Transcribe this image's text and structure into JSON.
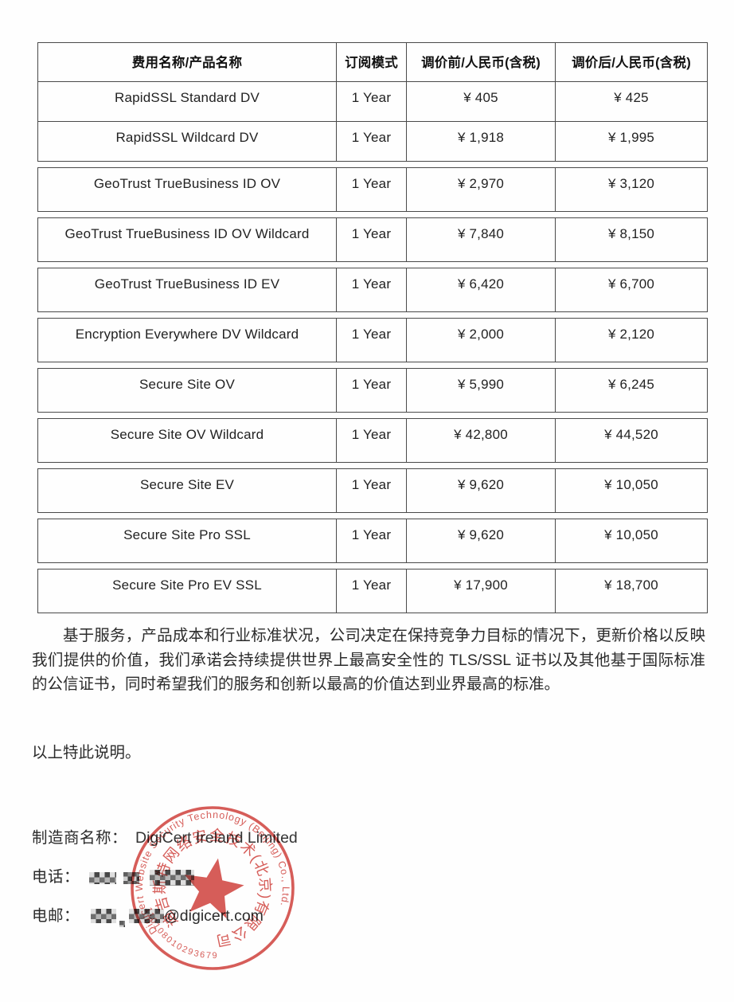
{
  "table": {
    "headers": [
      "费用名称/产品名称",
      "订阅模式",
      "调价前/人民币(含税)",
      "调价后/人民币(含税)"
    ],
    "rows": [
      {
        "product": "RapidSSL Standard DV",
        "term": "1 Year",
        "before": "¥ 405",
        "after": "¥ 425"
      },
      {
        "product": "RapidSSL Wildcard DV",
        "term": "1 Year",
        "before": "¥ 1,918",
        "after": "¥ 1,995"
      },
      {
        "product": "GeoTrust TrueBusiness ID OV",
        "term": "1 Year",
        "before": "¥ 2,970",
        "after": "¥ 3,120"
      },
      {
        "product": "GeoTrust TrueBusiness ID OV Wildcard",
        "term": "1 Year",
        "before": "¥ 7,840",
        "after": "¥ 8,150"
      },
      {
        "product": "GeoTrust TrueBusiness ID EV",
        "term": "1 Year",
        "before": "¥ 6,420",
        "after": "¥ 6,700"
      },
      {
        "product": "Encryption Everywhere DV Wildcard",
        "term": "1 Year",
        "before": "¥ 2,000",
        "after": "¥ 2,120"
      },
      {
        "product": "Secure Site OV",
        "term": "1 Year",
        "before": "¥ 5,990",
        "after": "¥ 6,245"
      },
      {
        "product": "Secure Site OV Wildcard",
        "term": "1 Year",
        "before": "¥ 42,800",
        "after": "¥ 44,520"
      },
      {
        "product": "Secure Site EV",
        "term": "1 Year",
        "before": "¥ 9,620",
        "after": "¥ 10,050"
      },
      {
        "product": "Secure Site Pro SSL",
        "term": "1 Year",
        "before": "¥ 9,620",
        "after": "¥ 10,050"
      },
      {
        "product": "Secure Site Pro EV SSL",
        "term": "1 Year",
        "before": "¥ 17,900",
        "after": "¥ 18,700"
      }
    ]
  },
  "document": {
    "paragraph": "基于服务，产品成本和行业标准状况，公司决定在保持竞争力目标的情况下，更新价格以反映我们提供的价值，我们承诺会持续提供世界上最高安全性的 TLS/SSL 证书以及其他基于国际标准的公信证书，同时希望我们的服务和创新以最高的价值达到业界最高的标准。",
    "closing": "以上特此说明。"
  },
  "contact": {
    "manufacturer_label": "制造商名称：",
    "manufacturer_value": "DigiCert Ireland Limited",
    "phone_label": "电话：",
    "email_label": "电邮：",
    "email_domain": "@digicert.com"
  },
  "seal": {
    "ring_text_en": "Digicert Website Security Technology (Beijing) Co., Ltd.",
    "ring_text_zh": "迪吉斯特网络安全技术(北京)有限公司",
    "number": "110108010293679",
    "color": "#cf3e39"
  }
}
